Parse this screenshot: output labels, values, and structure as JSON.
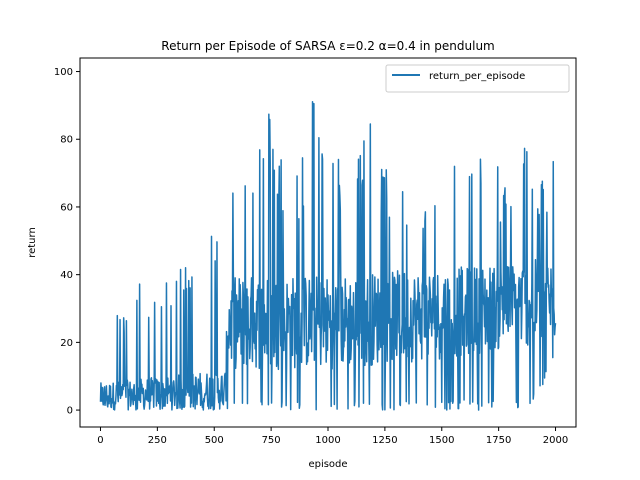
{
  "chart_data": {
    "type": "line",
    "title": "Return per Episode of SARSA ε=0.2 α=0.4 in pendulum",
    "xlabel": "episode",
    "ylabel": "return",
    "xlim": [
      -90,
      2090
    ],
    "ylim": [
      -5,
      104
    ],
    "xticks": [
      0,
      250,
      500,
      750,
      1000,
      1250,
      1500,
      1750,
      2000
    ],
    "yticks": [
      0,
      20,
      40,
      60,
      80,
      100
    ],
    "grid": false,
    "legend": {
      "entries": [
        "return_per_episode"
      ],
      "position": "top-right"
    },
    "colors": {
      "series": "#1f77b4"
    },
    "series": [
      {
        "name": "return_per_episode",
        "x_range": [
          0,
          2000
        ],
        "envelope": [
          {
            "x": 0,
            "low": 0,
            "high": 15
          },
          {
            "x": 35,
            "low": 0,
            "high": 38
          },
          {
            "x": 100,
            "low": 0,
            "high": 27
          },
          {
            "x": 150,
            "low": 0,
            "high": 44
          },
          {
            "x": 200,
            "low": 0,
            "high": 31
          },
          {
            "x": 250,
            "low": 0,
            "high": 36
          },
          {
            "x": 300,
            "low": 0,
            "high": 38
          },
          {
            "x": 350,
            "low": 0,
            "high": 43
          },
          {
            "x": 400,
            "low": 0,
            "high": 48
          },
          {
            "x": 440,
            "low": 0,
            "high": 63
          },
          {
            "x": 470,
            "low": 0,
            "high": 65
          },
          {
            "x": 500,
            "low": 0,
            "high": 58
          },
          {
            "x": 540,
            "low": 0,
            "high": 40
          },
          {
            "x": 570,
            "low": 0,
            "high": 78
          },
          {
            "x": 640,
            "low": 0,
            "high": 75
          },
          {
            "x": 720,
            "low": 0,
            "high": 93
          },
          {
            "x": 800,
            "low": 0,
            "high": 78
          },
          {
            "x": 880,
            "low": 0,
            "high": 72
          },
          {
            "x": 925,
            "low": 0,
            "high": 99
          },
          {
            "x": 1000,
            "low": 0,
            "high": 76
          },
          {
            "x": 1080,
            "low": 0,
            "high": 75
          },
          {
            "x": 1170,
            "low": 0,
            "high": 90
          },
          {
            "x": 1250,
            "low": 0,
            "high": 72
          },
          {
            "x": 1330,
            "low": 0,
            "high": 71
          },
          {
            "x": 1400,
            "low": 0,
            "high": 60
          },
          {
            "x": 1470,
            "low": 0,
            "high": 80
          },
          {
            "x": 1550,
            "low": 0,
            "high": 77
          },
          {
            "x": 1640,
            "low": 0,
            "high": 74
          },
          {
            "x": 1700,
            "low": 0,
            "high": 79
          },
          {
            "x": 1760,
            "low": 0,
            "high": 70
          },
          {
            "x": 1850,
            "low": 0,
            "high": 86
          },
          {
            "x": 1920,
            "low": 3,
            "high": 65
          },
          {
            "x": 1990,
            "low": 14,
            "high": 81
          },
          {
            "x": 2000,
            "low": 14,
            "high": 29
          }
        ],
        "typical_band": [
          {
            "x": 0,
            "low": 0,
            "high": 8
          },
          {
            "x": 550,
            "low": 0,
            "high": 12
          },
          {
            "x": 560,
            "low": 12,
            "high": 40
          },
          {
            "x": 1000,
            "low": 12,
            "high": 40
          },
          {
            "x": 1500,
            "low": 15,
            "high": 42
          },
          {
            "x": 2000,
            "low": 20,
            "high": 45
          }
        ]
      }
    ]
  }
}
